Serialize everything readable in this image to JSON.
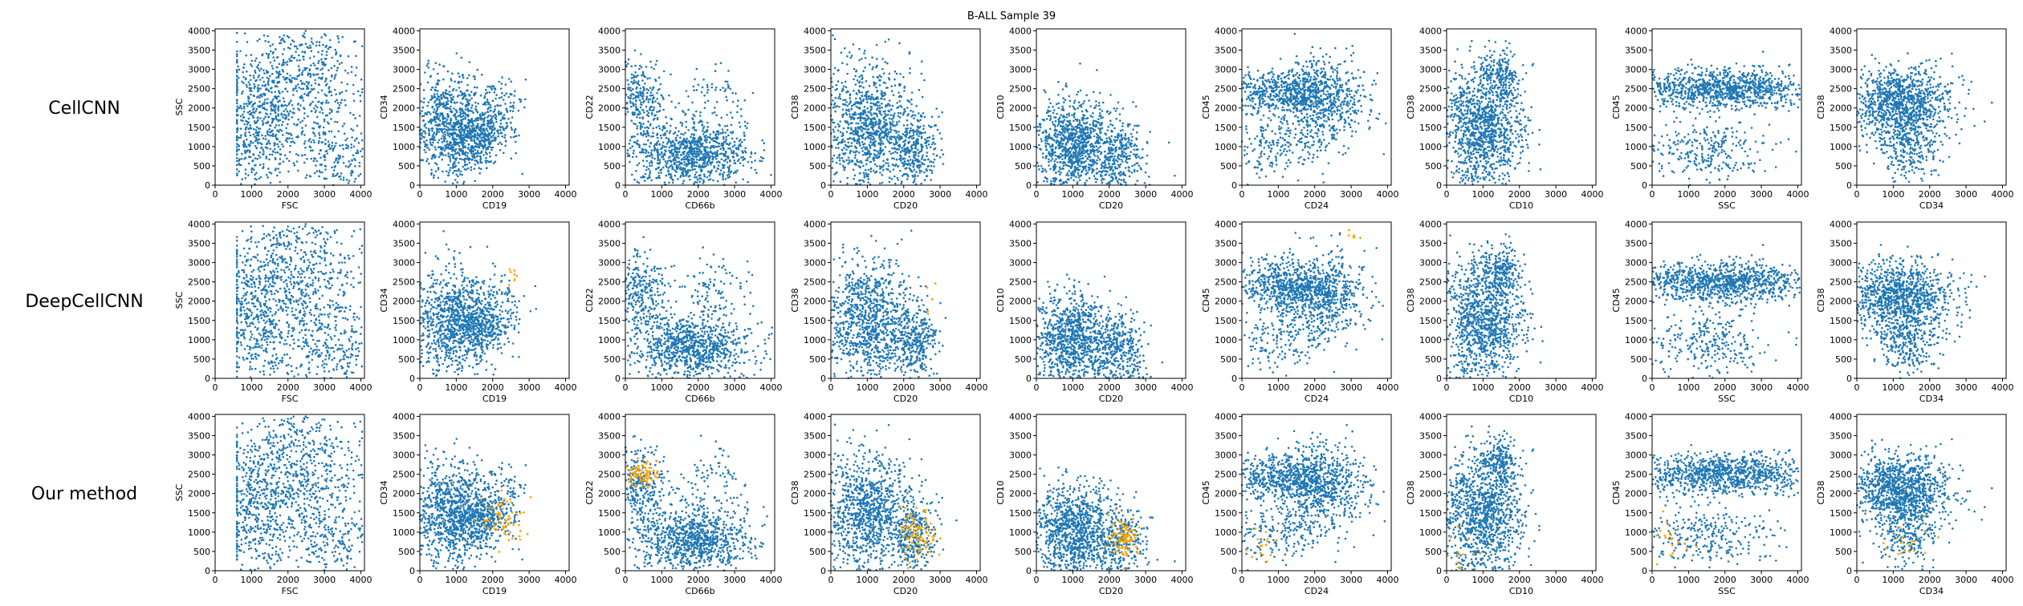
{
  "chart_data": {
    "type": "scatter",
    "title": "B-ALL Sample 39",
    "rows": [
      "CellCNN",
      "DeepCellCNN",
      "Our method"
    ],
    "x_ticks": [
      0,
      1000,
      2000,
      3000,
      4000
    ],
    "y_ticks": [
      0,
      500,
      1000,
      1500,
      2000,
      2500,
      3000,
      3500,
      4000
    ],
    "xlim": [
      0,
      4100
    ],
    "ylim": [
      0,
      4050
    ],
    "grid": false,
    "colors": {
      "cells": "#1f77b4",
      "highlighted": "#ffa500"
    },
    "panels": [
      {
        "x": "FSC",
        "y": "SSC",
        "description": "broad population from FSC 600 upward, dense throughout"
      },
      {
        "x": "CD19",
        "y": "CD34",
        "description": "main cluster CD19 0-1800, CD34 200-3000; diagonal tail to 2500"
      },
      {
        "x": "CD66b",
        "y": "CD22",
        "description": "wide band CD66b 0-3200 at CD22 0-1800; cluster near CD22 2500; diagonal streak"
      },
      {
        "x": "CD20",
        "y": "CD38",
        "description": "block CD20 0-2000, CD38 0-2900; secondary cluster CD20 ~2300, CD38 ~900"
      },
      {
        "x": "CD20",
        "y": "CD10",
        "description": "triangle CD20 0-2000 rising to CD10 2300; cluster CD20 ~2400, CD10 ~800"
      },
      {
        "x": "CD24",
        "y": "CD45",
        "description": "band CD45 2000-2800 and rising population toward CD24 3000, CD45 3100"
      },
      {
        "x": "CD10",
        "y": "CD38",
        "description": "cluster CD10 0-2300, CD38 0-3000 with peak near CD10 1300, CD38 3300"
      },
      {
        "x": "SSC",
        "y": "CD45",
        "description": "upper band CD45 2000-2900 across SSC 0-4000; lower curve below"
      },
      {
        "x": "CD34",
        "y": "CD38",
        "description": "main mass CD34 0-2900, CD38 500-2800; tail downward toward CD34 1800"
      }
    ],
    "highlighted_cells": {
      "CellCNN": "none visible",
      "DeepCellCNN": "sparse, near CD19 ~2500 / CD34 ~2700 and CD24 ~3000 / CD45 ~3700",
      "Our method": "clusters near CD19 ~2300 / CD34 ~1300, CD66b ~400 / CD22 ~2500, CD20 ~2400 / CD38 ~900, CD20 ~2400 / CD10 ~900"
    }
  }
}
